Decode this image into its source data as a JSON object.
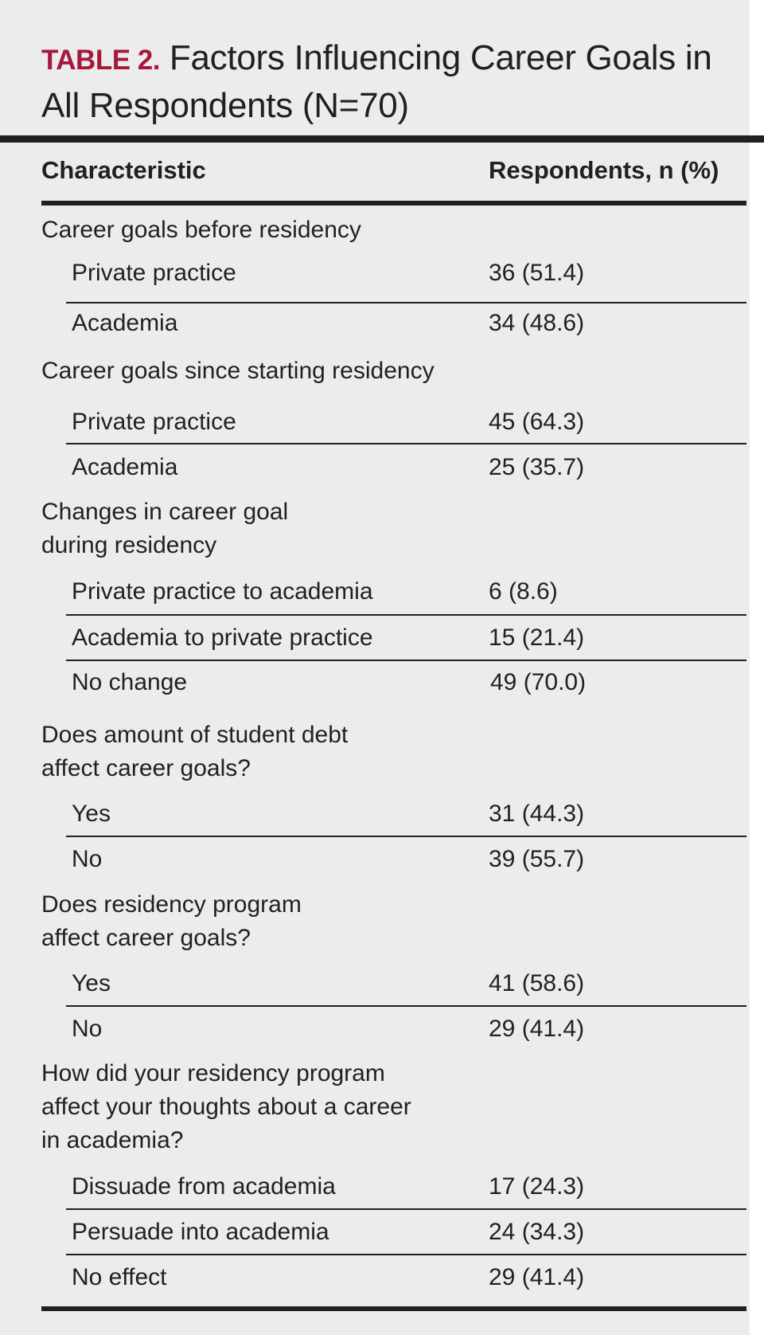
{
  "title": {
    "label": "TABLE 2.",
    "text": "Factors Influencing Career Goals in All Respondents (N=70)"
  },
  "headers": {
    "characteristic": "Characteristic",
    "respondents": "Respondents, n (%)"
  },
  "sections": [
    {
      "heading": "Career goals before residency",
      "rows": [
        {
          "label": "Private practice",
          "value": "36 (51.4)"
        },
        {
          "label": "Academia",
          "value": "34 (48.6)"
        }
      ]
    },
    {
      "heading": "Career goals since starting residency",
      "rows": [
        {
          "label": "Private practice",
          "value": "45 (64.3)"
        },
        {
          "label": "Academia",
          "value": "25 (35.7)"
        }
      ]
    },
    {
      "heading": "Changes in career goal during residency",
      "rows": [
        {
          "label": "Private practice to academia",
          "value": "6 (8.6)"
        },
        {
          "label": "Academia to private practice",
          "value": "15 (21.4)"
        },
        {
          "label": "No change",
          "value": "49 (70.0)"
        }
      ]
    },
    {
      "heading": "Does amount of student debt affect career goals?",
      "rows": [
        {
          "label": "Yes",
          "value": "31 (44.3)"
        },
        {
          "label": "No",
          "value": "39 (55.7)"
        }
      ]
    },
    {
      "heading": "Does residency program affect career goals?",
      "rows": [
        {
          "label": "Yes",
          "value": "41 (58.6)"
        },
        {
          "label": "No",
          "value": "29 (41.4)"
        }
      ]
    },
    {
      "heading": "How did your residency program affect your thoughts about a career in academia?",
      "rows": [
        {
          "label": "Dissuade from academia",
          "value": "17 (24.3)"
        },
        {
          "label": "Persuade into academia",
          "value": "24 (34.3)"
        },
        {
          "label": "No effect",
          "value": "29 (41.4)"
        }
      ]
    }
  ]
}
